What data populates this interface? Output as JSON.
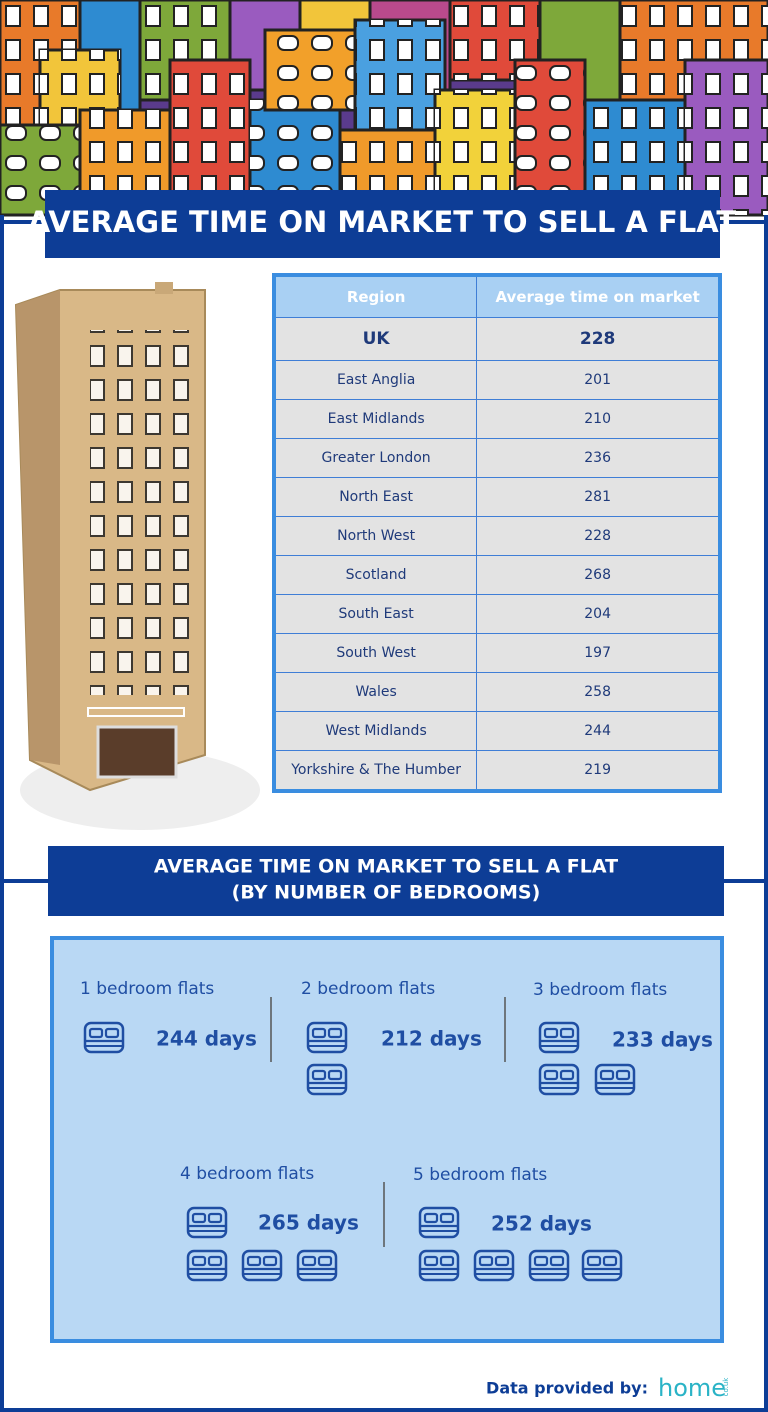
{
  "header": {
    "title": "AVERAGE TIME ON MARKET TO SELL A FLAT"
  },
  "table": {
    "columns": [
      "Region",
      "Average time on market"
    ],
    "rows": [
      [
        "UK",
        228
      ],
      [
        "East Anglia",
        201
      ],
      [
        "East Midlands",
        210
      ],
      [
        "Greater London",
        236
      ],
      [
        "North East",
        281
      ],
      [
        "North West",
        228
      ],
      [
        "Scotland",
        268
      ],
      [
        "South East",
        204
      ],
      [
        "South West",
        197
      ],
      [
        "Wales",
        258
      ],
      [
        "West Midlands",
        244
      ],
      [
        "Yorkshire & The Humber",
        219
      ]
    ]
  },
  "bedrooms": {
    "title": [
      "AVERAGE TIME ON MARKET TO SELL A FLAT",
      "(BY NUMBER OF BEDROOMS)"
    ],
    "items": [
      {
        "label": "1 bedroom flats",
        "value": "244 days"
      },
      {
        "label": "2 bedroom flats",
        "value": "212 days"
      },
      {
        "label": "3 bedroom flats",
        "value": "233 days"
      },
      {
        "label": "4 bedroom flats",
        "value": "265 days"
      },
      {
        "label": "5 bedroom flats",
        "value": "252 days"
      }
    ]
  },
  "footer": {
    "text": "Data provided by:",
    "logo": "home",
    "logo_suffix": "co.uk"
  }
}
